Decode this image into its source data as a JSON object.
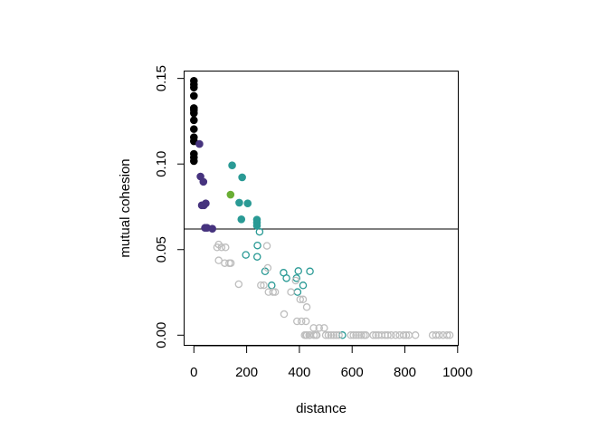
{
  "chart_data": {
    "type": "scatter",
    "title": "",
    "xlabel": "distance",
    "ylabel": "mutual cohesion",
    "xlim": [
      -40,
      1000
    ],
    "ylim": [
      -0.005,
      0.155
    ],
    "x_ticks": [
      0,
      200,
      400,
      600,
      800,
      1000
    ],
    "x_tick_labels": [
      "0",
      "200",
      "400",
      "600",
      "800",
      "1000"
    ],
    "y_ticks": [
      0.0,
      0.05,
      0.1,
      0.15
    ],
    "y_tick_labels": [
      "0.00",
      "0.05",
      "0.10",
      "0.15"
    ],
    "grid": false,
    "legend": "none",
    "hline": 0.062,
    "series": [
      {
        "color": "#000000",
        "filled": true,
        "x": [
          0,
          0,
          0,
          0,
          0,
          0,
          0,
          0,
          0,
          0,
          0,
          0,
          0,
          0
        ],
        "y": [
          0.1486,
          0.1465,
          0.1447,
          0.1398,
          0.1327,
          0.1315,
          0.1297,
          0.1256,
          0.1204,
          0.1156,
          0.1133,
          0.1059,
          0.1038,
          0.1017
        ]
      },
      {
        "color": "#46337E",
        "filled": true,
        "x": [
          21,
          25,
          36,
          30,
          38,
          45,
          42,
          50,
          70
        ],
        "y": [
          0.1117,
          0.0927,
          0.0896,
          0.0759,
          0.0759,
          0.077,
          0.0627,
          0.0627,
          0.0622
        ]
      },
      {
        "color": "#6AAE34",
        "filled": true,
        "x": [
          139
        ],
        "y": [
          0.0821
        ]
      },
      {
        "color": "#2A9A95",
        "filled": true,
        "x": [
          145,
          183,
          172,
          204,
          180,
          239,
          239,
          239
        ],
        "y": [
          0.0992,
          0.0922,
          0.0774,
          0.077,
          0.0677,
          0.0675,
          0.0657,
          0.064
        ]
      },
      {
        "color": "#2A9A95",
        "filled": false,
        "x": [
          249,
          241,
          197,
          240,
          270,
          295,
          340,
          351,
          389,
          396,
          440,
          414,
          393,
          563
        ],
        "y": [
          0.0604,
          0.0524,
          0.0469,
          0.0458,
          0.0373,
          0.0291,
          0.0365,
          0.0333,
          0.0333,
          0.0375,
          0.0373,
          0.0291,
          0.0252,
          0.0
        ]
      },
      {
        "color": "#BEBEBE",
        "filled": false,
        "x": [
          94,
          88,
          105,
          120,
          277,
          94,
          117,
          134,
          140,
          280,
          170,
          254,
          265,
          283,
          300,
          308,
          368,
          386,
          403,
          414,
          428,
          342,
          391,
          408,
          425,
          454,
          475,
          494,
          425,
          437,
          463,
          420,
          428,
          440,
          455,
          466,
          500,
          510,
          520,
          530,
          540,
          550,
          595,
          605,
          615,
          625,
          635,
          645,
          652,
          680,
          690,
          700,
          712,
          725,
          735,
          748,
          765,
          780,
          795,
          805,
          815,
          840,
          905,
          918,
          930,
          945,
          960,
          970
        ],
        "y": [
          0.053,
          0.0513,
          0.0513,
          0.0513,
          0.0522,
          0.0437,
          0.0421,
          0.0421,
          0.0421,
          0.0393,
          0.0298,
          0.0292,
          0.0292,
          0.0252,
          0.0252,
          0.0252,
          0.0252,
          0.0319,
          0.0209,
          0.0209,
          0.0164,
          0.0123,
          0.0081,
          0.0081,
          0.0081,
          0.0042,
          0.0042,
          0.0042,
          0,
          0,
          0,
          0,
          0,
          0,
          0,
          0,
          0,
          0,
          0,
          0,
          0,
          0,
          0,
          0,
          0,
          0,
          0,
          0,
          0,
          0,
          0,
          0,
          0,
          0,
          0,
          0,
          0,
          0,
          0,
          0,
          0,
          0,
          0,
          0,
          0,
          0,
          0,
          0
        ]
      }
    ]
  }
}
